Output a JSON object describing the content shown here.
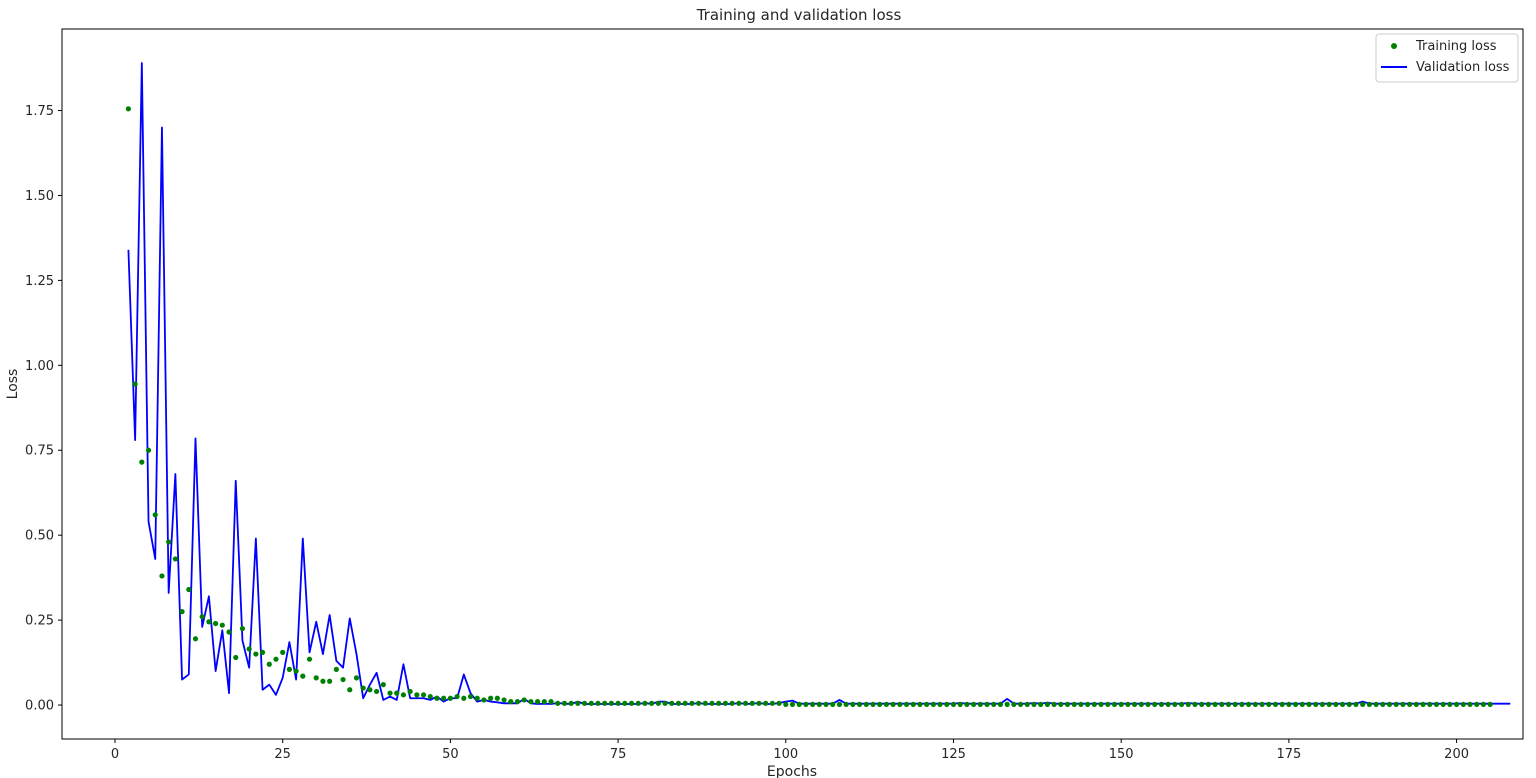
{
  "chart_data": {
    "type": "line",
    "title": "Training and validation loss",
    "xlabel": "Epochs",
    "ylabel": "Loss",
    "xlim": [
      -7.9,
      209.9
    ],
    "ylim": [
      -0.1,
      1.99
    ],
    "xticks": [
      0,
      25,
      50,
      75,
      100,
      125,
      150,
      175,
      200
    ],
    "xtick_labels": [
      "0",
      "25",
      "50",
      "75",
      "100",
      "125",
      "150",
      "175",
      "200"
    ],
    "yticks": [
      0.0,
      0.25,
      0.5,
      0.75,
      1.0,
      1.25,
      1.5,
      1.75
    ],
    "ytick_labels": [
      "0.00",
      "0.25",
      "0.50",
      "0.75",
      "1.00",
      "1.25",
      "1.50",
      "1.75"
    ],
    "grid": false,
    "legend": "top-right",
    "series": [
      {
        "name": "Training loss",
        "style": "dots",
        "color": "#008000",
        "x_start": 2,
        "values": [
          1.755,
          0.945,
          0.715,
          0.75,
          0.56,
          0.38,
          0.48,
          0.43,
          0.275,
          0.34,
          0.195,
          0.26,
          0.245,
          0.24,
          0.235,
          0.215,
          0.14,
          0.225,
          0.165,
          0.15,
          0.155,
          0.12,
          0.135,
          0.155,
          0.105,
          0.1,
          0.085,
          0.135,
          0.08,
          0.07,
          0.07,
          0.105,
          0.075,
          0.045,
          0.08,
          0.05,
          0.045,
          0.04,
          0.06,
          0.035,
          0.035,
          0.03,
          0.04,
          0.03,
          0.03,
          0.025,
          0.02,
          0.02,
          0.02,
          0.025,
          0.02,
          0.025,
          0.02,
          0.015,
          0.02,
          0.02,
          0.015,
          0.01,
          0.01,
          0.015,
          0.01,
          0.01,
          0.01,
          0.01,
          0.005,
          0.005,
          0.005,
          0.005,
          0.005,
          0.005,
          0.005,
          0.005,
          0.005,
          0.005,
          0.005,
          0.005,
          0.005,
          0.005,
          0.005,
          0.005,
          0.005,
          0.005,
          0.005,
          0.005,
          0.005,
          0.005,
          0.005,
          0.005,
          0.005,
          0.005,
          0.005,
          0.005,
          0.005,
          0.005,
          0.005,
          0.005,
          0.005,
          0.005,
          0.002,
          0.002,
          0.002,
          0.002,
          0.002,
          0.002,
          0.002,
          0.002,
          0.002,
          0.002,
          0.002,
          0.002,
          0.002,
          0.002,
          0.002,
          0.002,
          0.002,
          0.002,
          0.002,
          0.002,
          0.002,
          0.002,
          0.002,
          0.002,
          0.002,
          0.002,
          0.002,
          0.002,
          0.002,
          0.002,
          0.002,
          0.002,
          0.002,
          0.002,
          0.002,
          0.002,
          0.002,
          0.002,
          0.002,
          0.002,
          0.002,
          0.002,
          0.002,
          0.002,
          0.002,
          0.002,
          0.002,
          0.002,
          0.002,
          0.002,
          0.002,
          0.002,
          0.002,
          0.002,
          0.002,
          0.002,
          0.002,
          0.002,
          0.002,
          0.002,
          0.002,
          0.002,
          0.002,
          0.002,
          0.002,
          0.002,
          0.002,
          0.002,
          0.002,
          0.002,
          0.002,
          0.002,
          0.002,
          0.002,
          0.002,
          0.002,
          0.002,
          0.002,
          0.002,
          0.002,
          0.002,
          0.002,
          0.002,
          0.002,
          0.002,
          0.002,
          0.002,
          0.002,
          0.002,
          0.002,
          0.002,
          0.002,
          0.002,
          0.002,
          0.002,
          0.002,
          0.002,
          0.002,
          0.002,
          0.002,
          0.002,
          0.002,
          0.002,
          0.002,
          0.002,
          0.002
        ]
      },
      {
        "name": "Validation loss",
        "style": "line",
        "color": "#0000ff",
        "x_start": 2,
        "values": [
          1.34,
          0.78,
          1.89,
          0.54,
          0.43,
          1.7,
          0.33,
          0.68,
          0.075,
          0.09,
          0.785,
          0.23,
          0.32,
          0.1,
          0.22,
          0.035,
          0.66,
          0.19,
          0.11,
          0.49,
          0.045,
          0.06,
          0.03,
          0.08,
          0.185,
          0.075,
          0.49,
          0.155,
          0.245,
          0.15,
          0.265,
          0.13,
          0.11,
          0.255,
          0.15,
          0.02,
          0.06,
          0.095,
          0.015,
          0.025,
          0.015,
          0.12,
          0.02,
          0.02,
          0.02,
          0.015,
          0.025,
          0.01,
          0.02,
          0.02,
          0.09,
          0.035,
          0.01,
          0.015,
          0.01,
          0.008,
          0.005,
          0.005,
          0.005,
          0.018,
          0.005,
          0.003,
          0.004,
          0.003,
          0.006,
          0.004,
          0.003,
          0.01,
          0.003,
          0.003,
          0.003,
          0.003,
          0.003,
          0.003,
          0.003,
          0.003,
          0.003,
          0.006,
          0.003,
          0.01,
          0.01,
          0.003,
          0.003,
          0.003,
          0.003,
          0.006,
          0.003,
          0.003,
          0.003,
          0.003,
          0.003,
          0.006,
          0.003,
          0.004,
          0.006,
          0.003,
          0.003,
          0.006,
          0.01,
          0.013,
          0.004,
          0.004,
          0.004,
          0.004,
          0.004,
          0.004,
          0.015,
          0.004,
          0.004,
          0.004,
          0.004,
          0.004,
          0.004,
          0.004,
          0.004,
          0.004,
          0.004,
          0.004,
          0.004,
          0.004,
          0.004,
          0.004,
          0.004,
          0.004,
          0.006,
          0.004,
          0.004,
          0.004,
          0.004,
          0.004,
          0.004,
          0.018,
          0.004,
          0.004,
          0.004,
          0.006,
          0.004,
          0.007,
          0.004,
          0.004,
          0.004,
          0.004,
          0.004,
          0.004,
          0.004,
          0.004,
          0.004,
          0.004,
          0.004,
          0.004,
          0.004,
          0.004,
          0.004,
          0.004,
          0.004,
          0.004,
          0.004,
          0.004,
          0.006,
          0.004,
          0.004,
          0.004,
          0.004,
          0.004,
          0.004,
          0.004,
          0.004,
          0.004,
          0.004,
          0.004,
          0.004,
          0.004,
          0.004,
          0.004,
          0.004,
          0.004,
          0.004,
          0.004,
          0.004,
          0.004,
          0.004,
          0.004,
          0.004,
          0.004,
          0.01,
          0.004,
          0.004,
          0.004,
          0.004,
          0.004,
          0.004,
          0.004,
          0.004,
          0.004,
          0.004,
          0.004,
          0.004,
          0.004,
          0.004,
          0.004,
          0.004,
          0.004,
          0.004,
          0.004,
          0.004,
          0.004,
          0.004
        ]
      }
    ]
  }
}
